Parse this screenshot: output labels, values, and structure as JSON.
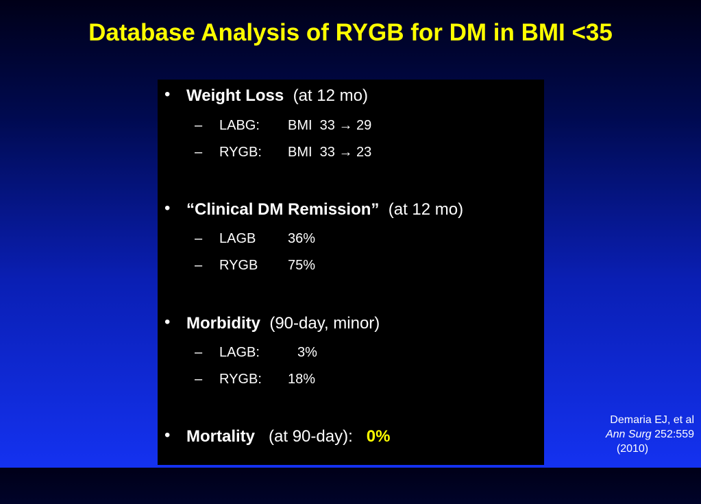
{
  "title": "Database Analysis of RYGB for DM in BMI <35",
  "bullets": [
    {
      "label": "Weight Loss",
      "note": "(at 12 mo)",
      "subs": [
        {
          "label": "LABG:",
          "value": "BMI  33 → 29"
        },
        {
          "label": "RYGB:",
          "value": "BMI  33 → 23"
        }
      ]
    },
    {
      "label": "“Clinical DM Remission”",
      "note": "(at 12 mo)",
      "subs": [
        {
          "label": "LAGB",
          "value": "36%"
        },
        {
          "label": "RYGB",
          "value": "75%"
        }
      ]
    },
    {
      "label": "Morbidity",
      "note": "(90-day, minor)",
      "subs": [
        {
          "label": "LAGB:",
          "value": "3%"
        },
        {
          "label": "RYGB:",
          "value": "18%"
        }
      ]
    },
    {
      "label": "Mortality",
      "note": "(at 90-day):",
      "highlight": "0%"
    }
  ],
  "citation": {
    "authors": "Demaria EJ, et al",
    "journal": "Ann Surg",
    "ref": "252:559",
    "year": "(2010)"
  },
  "colors": {
    "title": "#ffff00",
    "highlight": "#ffff00",
    "panel": "#000000"
  }
}
